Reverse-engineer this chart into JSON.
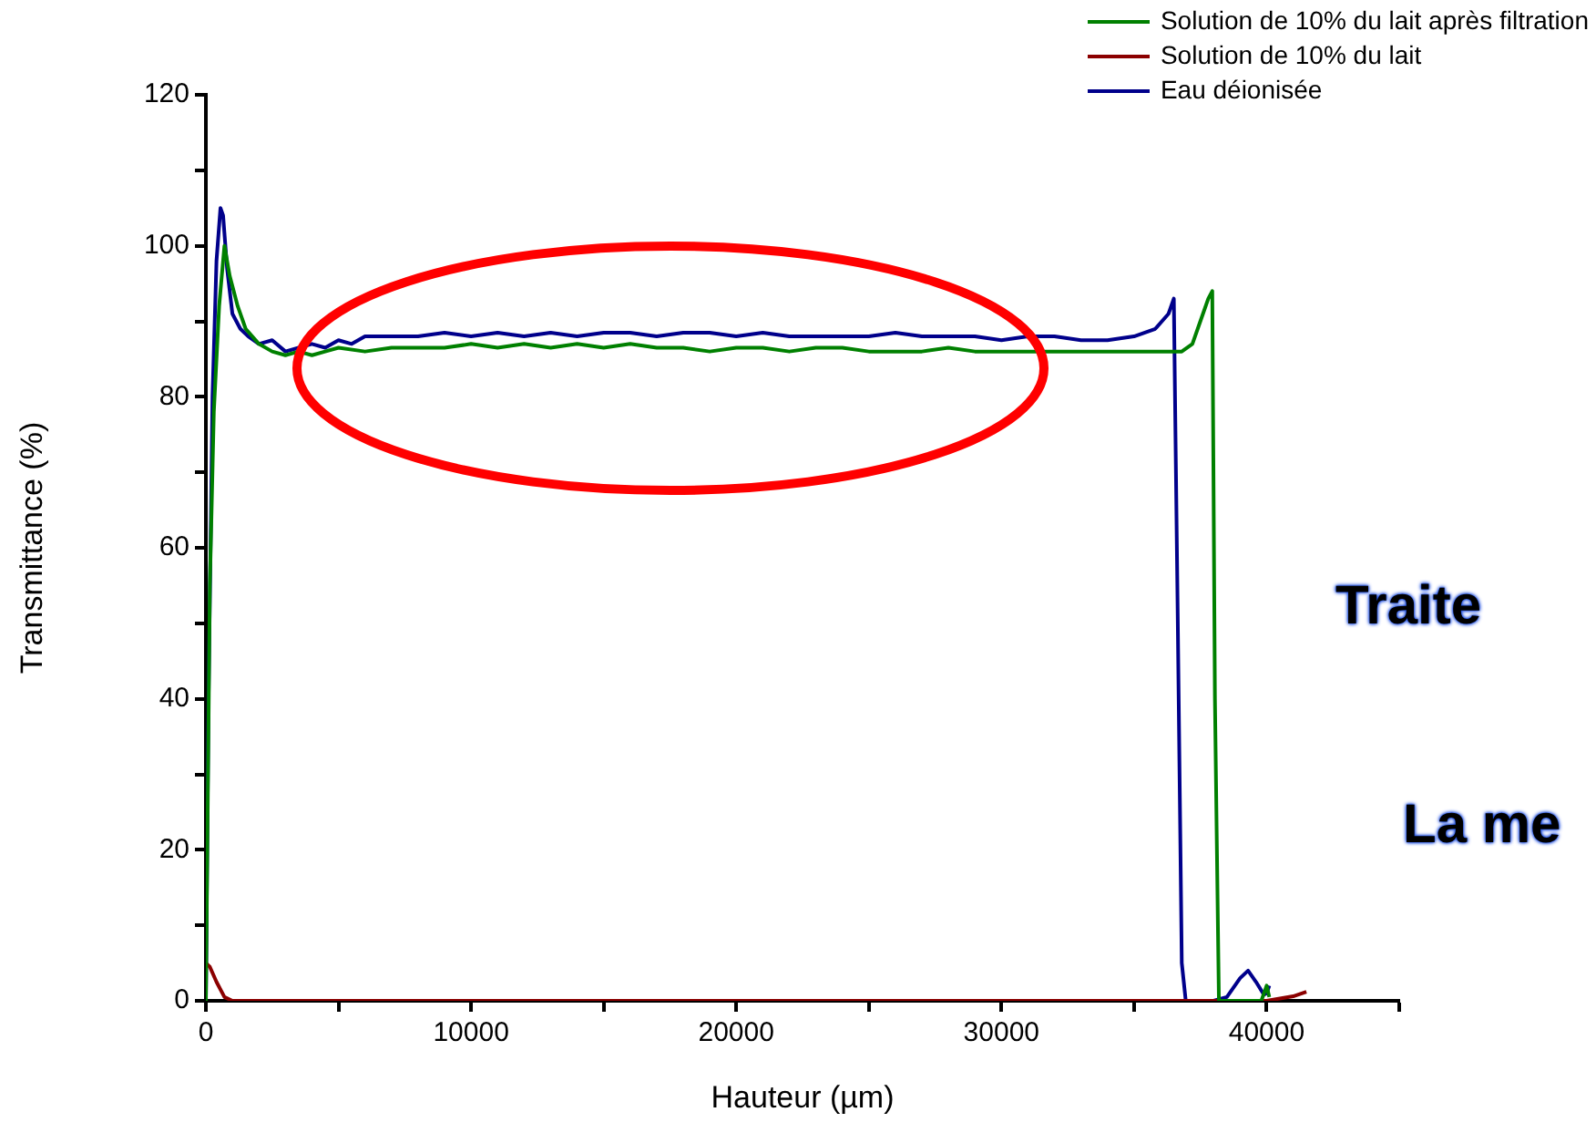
{
  "chart_data": {
    "type": "line",
    "xlabel": "Hauteur (µm)",
    "ylabel": "Transmittance (%)",
    "xlim": [
      0,
      45000
    ],
    "xticks": [
      0,
      {
        "value": 5000,
        "label": null
      },
      10000,
      {
        "value": 15000,
        "label": null
      },
      20000,
      {
        "value": 25000,
        "label": null
      },
      30000,
      {
        "value": 35000,
        "label": null
      },
      40000,
      {
        "value": 45000,
        "label": null
      }
    ],
    "ylim": [
      0,
      120
    ],
    "yticks": [
      0,
      {
        "value": 10,
        "label": null
      },
      20,
      {
        "value": 30,
        "label": null
      },
      40,
      {
        "value": 50,
        "label": null
      },
      60,
      {
        "value": 70,
        "label": null
      },
      80,
      {
        "value": 90,
        "label": null
      },
      100,
      {
        "value": 110,
        "label": null
      },
      120
    ],
    "legend": "top right",
    "grid": false,
    "marker": "none",
    "line_style": "solid",
    "annotations": [
      "Traite",
      "La me"
    ],
    "series": [
      {
        "name": "Solution de 10% du lait après filtration",
        "color": "#008000",
        "x": [
          0,
          150,
          300,
          500,
          700,
          900,
          1200,
          1500,
          2000,
          2500,
          3000,
          3500,
          4000,
          4500,
          5000,
          6000,
          7000,
          8000,
          9000,
          10000,
          11000,
          12000,
          13000,
          14000,
          15000,
          16000,
          17000,
          18000,
          19000,
          20000,
          21000,
          22000,
          23000,
          24000,
          25000,
          26000,
          27000,
          28000,
          29000,
          30000,
          31000,
          32000,
          33000,
          34000,
          35000,
          36000,
          36800,
          37200,
          37500,
          37800,
          37950,
          38050,
          38200,
          38500,
          39000,
          39500,
          39800,
          40000,
          40100
        ],
        "values": [
          0,
          55,
          78,
          92,
          100,
          96,
          92,
          89,
          87,
          86,
          85.5,
          86,
          85.5,
          86,
          86.5,
          86,
          86.5,
          86.5,
          86.5,
          87,
          86.5,
          87,
          86.5,
          87,
          86.5,
          87,
          86.5,
          86.5,
          86,
          86.5,
          86.5,
          86,
          86.5,
          86.5,
          86,
          86,
          86,
          86.5,
          86,
          86,
          86,
          86,
          86,
          86,
          86,
          86,
          86,
          87,
          90,
          93,
          94,
          40,
          0,
          0,
          0,
          0,
          0,
          2,
          0.5
        ]
      },
      {
        "name": "Solution de 10% du lait",
        "color": "#8b0000",
        "x": [
          0,
          150,
          400,
          700,
          1000,
          5000,
          10000,
          20000,
          30000,
          35000,
          38000,
          40000,
          40500,
          41000,
          41500
        ],
        "values": [
          5,
          4.5,
          2.5,
          0.5,
          0,
          0,
          0,
          0,
          0,
          0,
          0,
          0,
          0.3,
          0.6,
          1.2
        ]
      },
      {
        "name": "Eau déionisée",
        "color": "#00008b",
        "x": [
          0,
          100,
          250,
          400,
          550,
          650,
          800,
          1000,
          1300,
          1600,
          2000,
          2500,
          3000,
          3500,
          4000,
          4500,
          5000,
          5500,
          6000,
          7000,
          8000,
          9000,
          10000,
          11000,
          12000,
          13000,
          14000,
          15000,
          16000,
          17000,
          18000,
          19000,
          20000,
          21000,
          22000,
          23000,
          24000,
          25000,
          26000,
          27000,
          28000,
          29000,
          30000,
          31000,
          32000,
          33000,
          34000,
          35000,
          35800,
          36300,
          36500,
          36650,
          36800,
          36950,
          37500,
          38000,
          38500,
          39000,
          39300,
          39600,
          39900,
          40000,
          40100
        ],
        "values": [
          0,
          40,
          80,
          98,
          105,
          104,
          97,
          91,
          89,
          88,
          87,
          87.5,
          86,
          86.5,
          87,
          86.5,
          87.5,
          87,
          88,
          88,
          88,
          88.5,
          88,
          88.5,
          88,
          88.5,
          88,
          88.5,
          88.5,
          88,
          88.5,
          88.5,
          88,
          88.5,
          88,
          88,
          88,
          88,
          88.5,
          88,
          88,
          88,
          87.5,
          88,
          88,
          87.5,
          87.5,
          88,
          89,
          91,
          93,
          50,
          5,
          0,
          0,
          0,
          0.5,
          3,
          4,
          2.5,
          0.8,
          1,
          2
        ]
      }
    ]
  }
}
